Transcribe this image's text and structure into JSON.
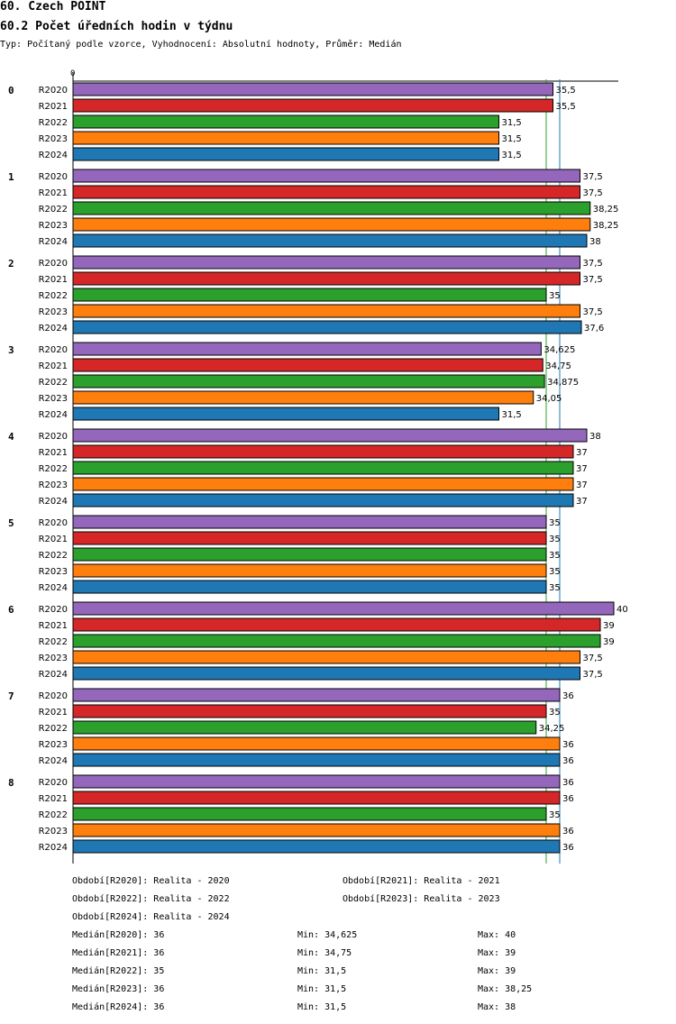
{
  "page": {
    "title": "60. Czech POINT",
    "subtitle": "60.2 Počet úředních hodin v týdnu",
    "type_line": "Typ: Počítaný podle vzorce, Vyhodnocení: Absolutní hodnoty, Průměr: Medián"
  },
  "chart_data": {
    "type": "bar",
    "orientation": "horizontal",
    "title": "60.2 Počet úředních hodin v týdnu",
    "x_zero_label": "0",
    "xlim": [
      0,
      40
    ],
    "reference_lines": [
      35,
      36
    ],
    "groups": [
      "0",
      "1",
      "2",
      "3",
      "4",
      "5",
      "6",
      "7",
      "8"
    ],
    "series": [
      {
        "name": "R2020",
        "color": "#9467bd",
        "values": [
          35.5,
          37.5,
          37.5,
          34.625,
          38,
          35,
          40,
          36,
          36
        ],
        "labels": [
          "35,5",
          "37,5",
          "37,5",
          "34,625",
          "38",
          "35",
          "40",
          "36",
          "36"
        ]
      },
      {
        "name": "R2021",
        "color": "#d62728",
        "values": [
          35.5,
          37.5,
          37.5,
          34.75,
          37,
          35,
          39,
          35,
          36
        ],
        "labels": [
          "35,5",
          "37,5",
          "37,5",
          "34,75",
          "37",
          "35",
          "39",
          "35",
          "36"
        ]
      },
      {
        "name": "R2022",
        "color": "#2ca02c",
        "values": [
          31.5,
          38.25,
          35,
          34.875,
          37,
          35,
          39,
          34.25,
          35
        ],
        "labels": [
          "31,5",
          "38,25",
          "35",
          "34,875",
          "37",
          "35",
          "39",
          "34,25",
          "35"
        ]
      },
      {
        "name": "R2023",
        "color": "#ff7f0e",
        "values": [
          31.5,
          38.25,
          37.5,
          34.05,
          37,
          35,
          37.5,
          36,
          36
        ],
        "labels": [
          "31,5",
          "38,25",
          "37,5",
          "34,05",
          "37",
          "35",
          "37,5",
          "36",
          "36"
        ]
      },
      {
        "name": "R2024",
        "color": "#1f77b4",
        "values": [
          31.5,
          38,
          37.6,
          31.5,
          37,
          35,
          37.5,
          36,
          36
        ],
        "labels": [
          "31,5",
          "38",
          "37,6",
          "31,5",
          "37",
          "35",
          "37,5",
          "36",
          "36"
        ]
      }
    ]
  },
  "legend": [
    [
      "Období[R2020]: Realita - 2020",
      "Období[R2021]: Realita - 2021"
    ],
    [
      "Období[R2022]: Realita - 2022",
      "Období[R2023]: Realita - 2023"
    ],
    [
      "Období[R2024]: Realita - 2024",
      ""
    ]
  ],
  "stats": [
    {
      "median": "Medián[R2020]: 36",
      "min": "Min: 34,625",
      "max": "Max: 40"
    },
    {
      "median": "Medián[R2021]: 36",
      "min": "Min: 34,75",
      "max": "Max: 39"
    },
    {
      "median": "Medián[R2022]: 35",
      "min": "Min: 31,5",
      "max": "Max: 39"
    },
    {
      "median": "Medián[R2023]: 36",
      "min": "Min: 31,5",
      "max": "Max: 38,25"
    },
    {
      "median": "Medián[R2024]: 36",
      "min": "Min: 31,5",
      "max": "Max: 38"
    }
  ]
}
